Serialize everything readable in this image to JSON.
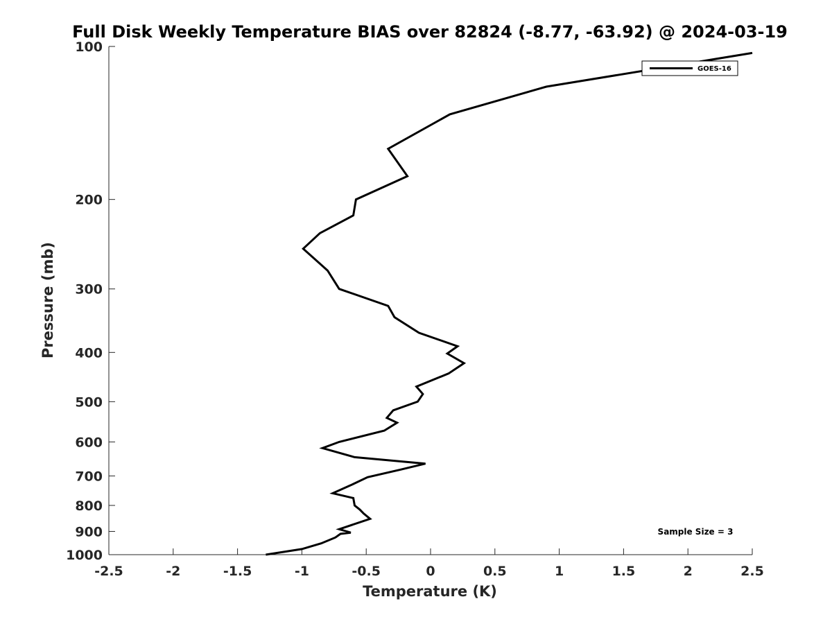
{
  "chart_data": {
    "type": "line",
    "title": "Full Disk Weekly Temperature BIAS over 82824 (-8.77, -63.92) @ 2024-03-19",
    "xlabel": "Temperature (K)",
    "ylabel": "Pressure (mb)",
    "xlim": [
      -2.5,
      2.5
    ],
    "ylim": [
      100,
      1000
    ],
    "yscale": "log",
    "yreversed": true,
    "xticks": [
      -2.5,
      -2,
      -1.5,
      -1,
      -0.5,
      0,
      0.5,
      1,
      1.5,
      2,
      2.5
    ],
    "xtick_labels": [
      "-2.5",
      "-2",
      "-1.5",
      "-1",
      "-0.5",
      "0",
      "0.5",
      "1",
      "1.5",
      "2",
      "2.5"
    ],
    "yticks": [
      100,
      200,
      300,
      400,
      500,
      600,
      700,
      800,
      900,
      1000
    ],
    "ytick_labels": [
      "100",
      "200",
      "300",
      "400",
      "500",
      "600",
      "700",
      "800",
      "900",
      "1000"
    ],
    "grid": false,
    "legend_position": "top-right",
    "series": [
      {
        "name": "GOES-16",
        "color": "#000000",
        "points": [
          {
            "x": 2.5,
            "y": 103
          },
          {
            "x": 0.9,
            "y": 120
          },
          {
            "x": 0.15,
            "y": 136
          },
          {
            "x": -0.33,
            "y": 159
          },
          {
            "x": -0.18,
            "y": 180
          },
          {
            "x": -0.58,
            "y": 200
          },
          {
            "x": -0.6,
            "y": 215
          },
          {
            "x": -0.86,
            "y": 233
          },
          {
            "x": -0.99,
            "y": 250
          },
          {
            "x": -0.8,
            "y": 276
          },
          {
            "x": -0.71,
            "y": 300
          },
          {
            "x": -0.33,
            "y": 324
          },
          {
            "x": -0.28,
            "y": 341
          },
          {
            "x": -0.09,
            "y": 366
          },
          {
            "x": 0.21,
            "y": 389
          },
          {
            "x": 0.13,
            "y": 402
          },
          {
            "x": 0.26,
            "y": 420
          },
          {
            "x": 0.14,
            "y": 440
          },
          {
            "x": -0.11,
            "y": 467
          },
          {
            "x": -0.06,
            "y": 483
          },
          {
            "x": -0.1,
            "y": 500
          },
          {
            "x": -0.29,
            "y": 520
          },
          {
            "x": -0.34,
            "y": 538
          },
          {
            "x": -0.26,
            "y": 550
          },
          {
            "x": -0.36,
            "y": 570
          },
          {
            "x": -0.71,
            "y": 600
          },
          {
            "x": -0.84,
            "y": 617
          },
          {
            "x": -0.59,
            "y": 643
          },
          {
            "x": -0.04,
            "y": 662
          },
          {
            "x": -0.23,
            "y": 680
          },
          {
            "x": -0.49,
            "y": 704
          },
          {
            "x": -0.62,
            "y": 730
          },
          {
            "x": -0.76,
            "y": 757
          },
          {
            "x": -0.6,
            "y": 774
          },
          {
            "x": -0.59,
            "y": 800
          },
          {
            "x": -0.55,
            "y": 815
          },
          {
            "x": -0.52,
            "y": 830
          },
          {
            "x": -0.47,
            "y": 850
          },
          {
            "x": -0.71,
            "y": 891
          },
          {
            "x": -0.62,
            "y": 905
          },
          {
            "x": -0.7,
            "y": 910
          },
          {
            "x": -0.74,
            "y": 925
          },
          {
            "x": -0.85,
            "y": 950
          },
          {
            "x": -1.0,
            "y": 975
          },
          {
            "x": -1.28,
            "y": 1000
          }
        ]
      }
    ],
    "annotations": [
      "Sample Size = 3"
    ]
  }
}
